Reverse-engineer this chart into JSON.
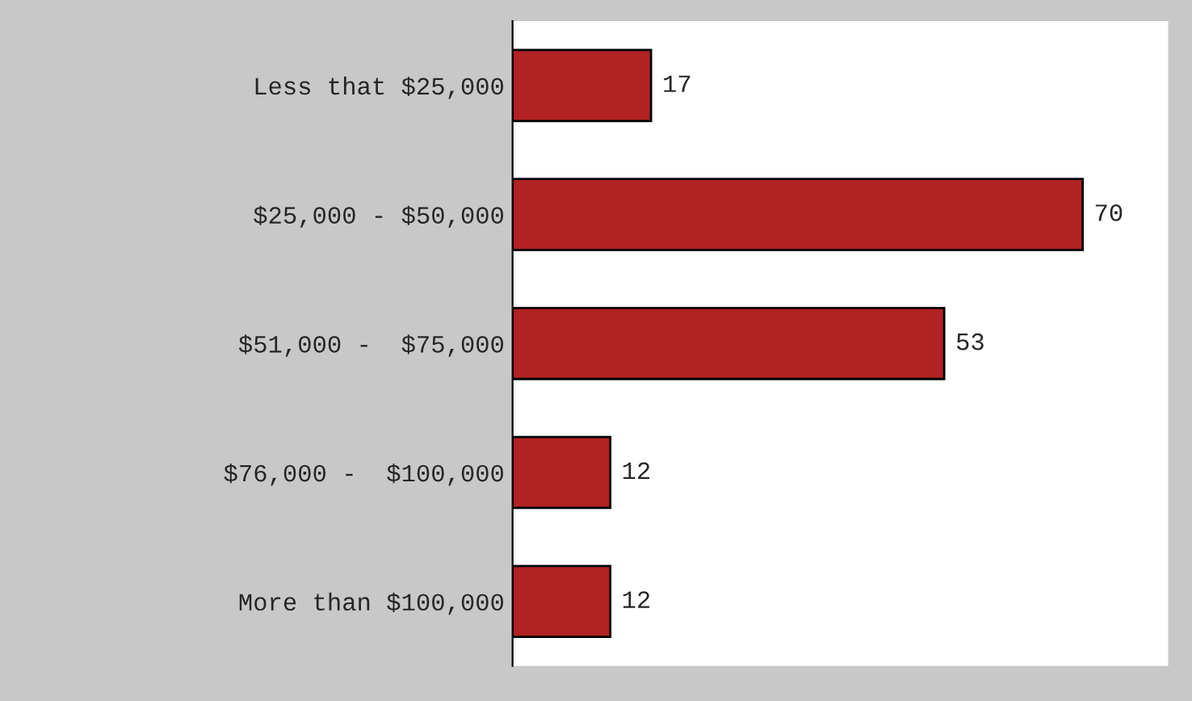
{
  "chart_data": {
    "type": "bar",
    "orientation": "horizontal",
    "categories": [
      "Less that $25,000",
      "$25,000 - $50,000",
      "$51,000 -  $75,000",
      "$76,000 -  $100,000",
      "More than $100,000"
    ],
    "values": [
      17,
      70,
      53,
      12,
      12
    ],
    "color": "#b22222",
    "data_labels": true
  }
}
